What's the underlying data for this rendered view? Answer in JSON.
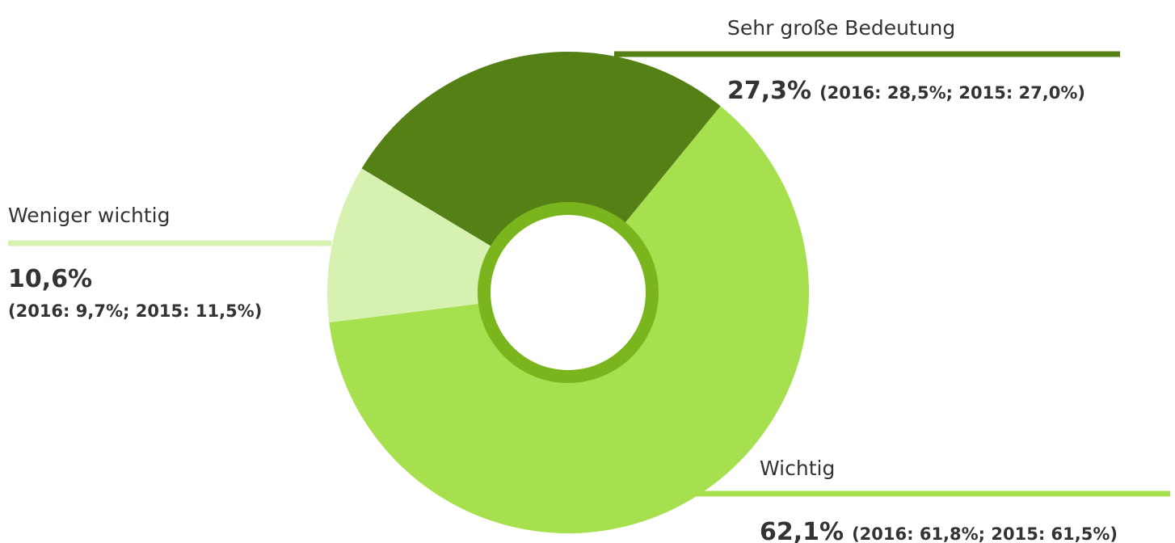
{
  "chart_data": {
    "type": "donut",
    "categories": [
      "Sehr große Bedeutung",
      "Wichtig",
      "Weniger wichtig"
    ],
    "values": [
      27.3,
      62.1,
      10.6
    ],
    "value_labels": [
      "27,3%",
      "62,1%",
      "10,6%"
    ],
    "details": [
      "(2016: 28,5%; 2015: 27,0%)",
      "(2016: 61,8%; 2015: 61,5%)",
      "(2016: 9,7%; 2015: 11,5%)"
    ],
    "colors": [
      "#548016",
      "#a6e04e",
      "#d6f1b0"
    ],
    "center_ring_color": "#7ab51d"
  }
}
